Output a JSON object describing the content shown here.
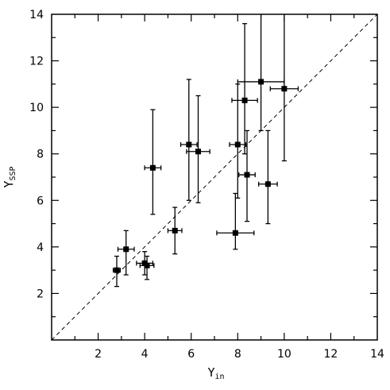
{
  "chart_data": {
    "type": "scatter",
    "title": "",
    "xlabel": {
      "symbol": "Υ",
      "subscript": "in"
    },
    "ylabel": {
      "symbol": "Υ",
      "subscript": "SSP"
    },
    "xlim": [
      0,
      14
    ],
    "ylim": [
      0,
      14
    ],
    "x_ticks": [
      2,
      4,
      6,
      8,
      10,
      12,
      14
    ],
    "y_ticks": [
      2,
      4,
      6,
      8,
      10,
      12,
      14
    ],
    "grid": false,
    "reference_line": {
      "from": [
        0,
        0
      ],
      "to": [
        14,
        14
      ],
      "style": "dashed"
    },
    "series": [
      {
        "marker": "square",
        "points": [
          {
            "x": 2.8,
            "y": 3.0,
            "xerr": [
              0.15,
              0.15
            ],
            "yerr": [
              0.7,
              0.6
            ]
          },
          {
            "x": 3.2,
            "y": 3.9,
            "xerr": [
              0.35,
              0.35
            ],
            "yerr": [
              1.1,
              0.8
            ]
          },
          {
            "x": 4.0,
            "y": 3.3,
            "xerr": [
              0.35,
              0.35
            ],
            "yerr": [
              0.5,
              0.5
            ]
          },
          {
            "x": 4.1,
            "y": 3.2,
            "xerr": [
              0.3,
              0.3
            ],
            "yerr": [
              0.6,
              0.4
            ]
          },
          {
            "x": 4.35,
            "y": 7.4,
            "xerr": [
              0.35,
              0.35
            ],
            "yerr": [
              2.0,
              2.5
            ]
          },
          {
            "x": 5.3,
            "y": 4.7,
            "xerr": [
              0.3,
              0.3
            ],
            "yerr": [
              1.0,
              1.0
            ]
          },
          {
            "x": 5.9,
            "y": 8.4,
            "xerr": [
              0.35,
              0.35
            ],
            "yerr": [
              2.4,
              2.8
            ]
          },
          {
            "x": 6.3,
            "y": 8.1,
            "xerr": [
              0.5,
              0.5
            ],
            "yerr": [
              2.2,
              2.4
            ]
          },
          {
            "x": 7.9,
            "y": 4.6,
            "xerr": [
              0.8,
              0.8
            ],
            "yerr": [
              0.7,
              1.7
            ]
          },
          {
            "x": 8.0,
            "y": 8.4,
            "xerr": [
              0.35,
              0.35
            ],
            "yerr": [
              2.3,
              2.6
            ]
          },
          {
            "x": 8.3,
            "y": 10.3,
            "xerr": [
              0.55,
              0.55
            ],
            "yerr": [
              2.3,
              3.3
            ]
          },
          {
            "x": 8.4,
            "y": 7.1,
            "xerr": [
              0.35,
              0.35
            ],
            "yerr": [
              2.0,
              1.9
            ]
          },
          {
            "x": 9.0,
            "y": 11.1,
            "xerr": [
              1.0,
              1.0
            ],
            "yerr": [
              2.1,
              3.0
            ]
          },
          {
            "x": 9.3,
            "y": 6.7,
            "xerr": [
              0.4,
              0.4
            ],
            "yerr": [
              1.7,
              2.3
            ]
          },
          {
            "x": 10.0,
            "y": 10.8,
            "xerr": [
              0.6,
              0.6
            ],
            "yerr": [
              3.1,
              3.3
            ]
          }
        ]
      }
    ]
  }
}
